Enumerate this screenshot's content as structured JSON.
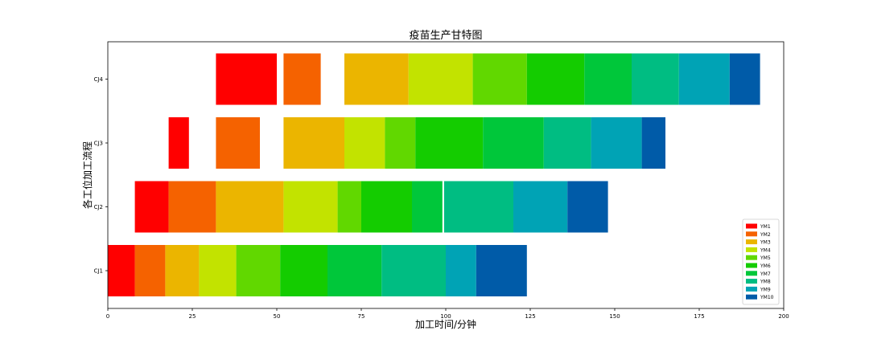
{
  "chart_data": {
    "type": "bar",
    "orientation": "horizontal",
    "title": "疫苗生产甘特图",
    "xlabel": "加工时间/分钟",
    "ylabel": "各工位加工流程",
    "xlim": [
      0,
      200
    ],
    "xticks": [
      0,
      25,
      50,
      75,
      100,
      125,
      150,
      175,
      200
    ],
    "categories": [
      "CJ1",
      "CJ2",
      "CJ3",
      "CJ4"
    ],
    "legend_position": "lower-right",
    "grid": false,
    "series": [
      {
        "name": "YM1",
        "color": "#ff0000",
        "tasks": [
          {
            "row": "CJ1",
            "start": 0,
            "end": 8
          },
          {
            "row": "CJ2",
            "start": 8,
            "end": 18
          },
          {
            "row": "CJ3",
            "start": 18,
            "end": 24
          },
          {
            "row": "CJ4",
            "start": 32,
            "end": 50
          }
        ]
      },
      {
        "name": "YM2",
        "color": "#f56200",
        "tasks": [
          {
            "row": "CJ1",
            "start": 8,
            "end": 17
          },
          {
            "row": "CJ2",
            "start": 18,
            "end": 32
          },
          {
            "row": "CJ3",
            "start": 32,
            "end": 45
          },
          {
            "row": "CJ4",
            "start": 52,
            "end": 63
          }
        ]
      },
      {
        "name": "YM3",
        "color": "#ebb500",
        "tasks": [
          {
            "row": "CJ1",
            "start": 17,
            "end": 27
          },
          {
            "row": "CJ2",
            "start": 32,
            "end": 52
          },
          {
            "row": "CJ3",
            "start": 52,
            "end": 70
          },
          {
            "row": "CJ4",
            "start": 70,
            "end": 89
          }
        ]
      },
      {
        "name": "YM4",
        "color": "#c2e300",
        "tasks": [
          {
            "row": "CJ1",
            "start": 27,
            "end": 38
          },
          {
            "row": "CJ2",
            "start": 52,
            "end": 68
          },
          {
            "row": "CJ3",
            "start": 70,
            "end": 82
          },
          {
            "row": "CJ4",
            "start": 89,
            "end": 108
          }
        ]
      },
      {
        "name": "YM5",
        "color": "#61d800",
        "tasks": [
          {
            "row": "CJ1",
            "start": 38,
            "end": 51
          },
          {
            "row": "CJ2",
            "start": 68,
            "end": 75
          },
          {
            "row": "CJ3",
            "start": 82,
            "end": 91
          },
          {
            "row": "CJ4",
            "start": 108,
            "end": 124
          }
        ]
      },
      {
        "name": "YM6",
        "color": "#14cc00",
        "tasks": [
          {
            "row": "CJ1",
            "start": 51,
            "end": 65
          },
          {
            "row": "CJ2",
            "start": 75,
            "end": 90
          },
          {
            "row": "CJ3",
            "start": 91,
            "end": 111
          },
          {
            "row": "CJ4",
            "start": 124,
            "end": 141
          }
        ]
      },
      {
        "name": "YM7",
        "color": "#00c73a",
        "tasks": [
          {
            "row": "CJ1",
            "start": 65,
            "end": 81
          },
          {
            "row": "CJ2",
            "start": 90,
            "end": 99
          },
          {
            "row": "CJ3",
            "start": 111,
            "end": 129
          },
          {
            "row": "CJ4",
            "start": 141,
            "end": 155
          }
        ]
      },
      {
        "name": "YM8",
        "color": "#00bd82",
        "tasks": [
          {
            "row": "CJ1",
            "start": 81,
            "end": 100
          },
          {
            "row": "CJ2",
            "start": 99.5,
            "end": 120
          },
          {
            "row": "CJ3",
            "start": 129,
            "end": 143
          },
          {
            "row": "CJ4",
            "start": 155,
            "end": 169
          }
        ]
      },
      {
        "name": "YM9",
        "color": "#00a3b5",
        "tasks": [
          {
            "row": "CJ1",
            "start": 100,
            "end": 109
          },
          {
            "row": "CJ2",
            "start": 120,
            "end": 136
          },
          {
            "row": "CJ3",
            "start": 143,
            "end": 158
          },
          {
            "row": "CJ4",
            "start": 169,
            "end": 184
          }
        ]
      },
      {
        "name": "YM10",
        "color": "#005ba8",
        "tasks": [
          {
            "row": "CJ1",
            "start": 109,
            "end": 124
          },
          {
            "row": "CJ2",
            "start": 136,
            "end": 148
          },
          {
            "row": "CJ3",
            "start": 158,
            "end": 165
          },
          {
            "row": "CJ4",
            "start": 184,
            "end": 193
          }
        ]
      }
    ]
  }
}
